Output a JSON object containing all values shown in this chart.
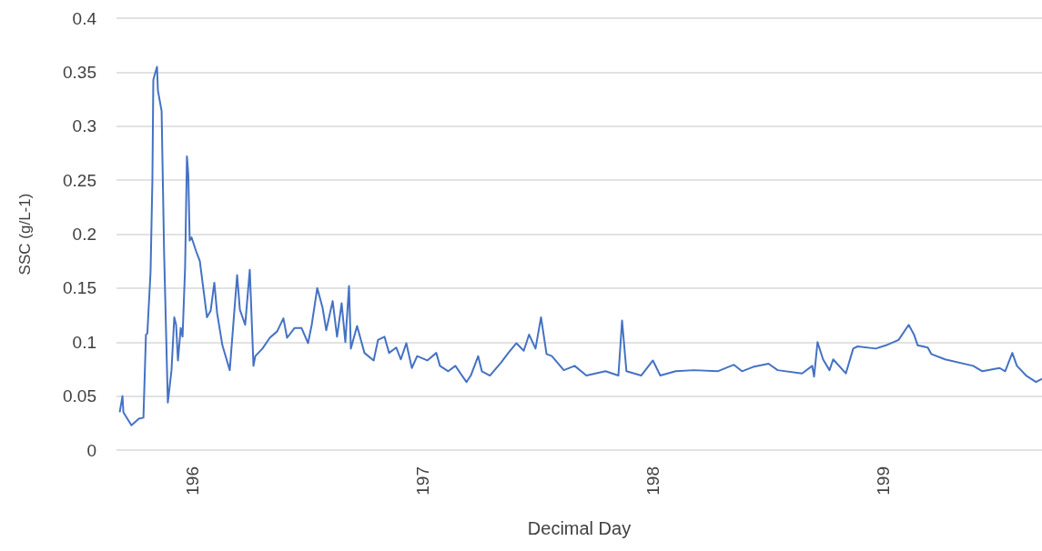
{
  "chart_data": {
    "type": "line",
    "xlabel": "Decimal Day",
    "ylabel": "SSC (g/L-1)",
    "xlim": [
      195.67,
      199.69
    ],
    "xticks": [
      196,
      197,
      198,
      199
    ],
    "ylim": [
      0,
      0.4
    ],
    "yticks": [
      0,
      0.05,
      0.1,
      0.15,
      0.2,
      0.25,
      0.3,
      0.35,
      0.4
    ],
    "grid": "y",
    "marker": "none",
    "line_style": "solid",
    "series": [
      {
        "color": "#4472c4",
        "x": [
          195.684,
          195.696,
          195.7,
          195.735,
          195.767,
          195.787,
          195.798,
          195.804,
          195.818,
          195.826,
          195.83,
          195.838,
          195.846,
          195.85,
          195.866,
          195.87,
          195.877,
          195.893,
          195.909,
          195.921,
          195.929,
          195.937,
          195.949,
          195.957,
          195.968,
          195.976,
          195.982,
          195.988,
          195.996,
          196.016,
          196.032,
          196.063,
          196.079,
          196.095,
          196.107,
          196.13,
          196.162,
          196.194,
          196.206,
          196.229,
          196.249,
          196.265,
          196.273,
          196.304,
          196.336,
          196.368,
          196.395,
          196.411,
          196.443,
          196.474,
          196.502,
          196.518,
          196.542,
          196.565,
          196.581,
          196.609,
          196.628,
          196.648,
          196.664,
          196.68,
          196.688,
          196.715,
          196.747,
          196.787,
          196.806,
          196.834,
          196.854,
          196.885,
          196.905,
          196.929,
          196.953,
          196.976,
          197.02,
          197.059,
          197.075,
          197.111,
          197.142,
          197.19,
          197.209,
          197.241,
          197.257,
          197.292,
          197.34,
          197.372,
          197.407,
          197.439,
          197.462,
          197.49,
          197.514,
          197.538,
          197.561,
          197.613,
          197.66,
          197.711,
          197.794,
          197.85,
          197.866,
          197.885,
          197.949,
          198,
          198.032,
          198.099,
          198.178,
          198.281,
          198.352,
          198.387,
          198.435,
          198.502,
          198.542,
          198.648,
          198.692,
          198.7,
          198.715,
          198.739,
          198.767,
          198.783,
          198.838,
          198.87,
          198.889,
          198.968,
          199.012,
          199.067,
          199.111,
          199.134,
          199.15,
          199.194,
          199.209,
          199.269,
          199.391,
          199.431,
          199.506,
          199.53,
          199.561,
          199.581,
          199.621,
          199.664,
          199.69
        ],
        "values": [
          0.035,
          0.05,
          0.035,
          0.023,
          0.029,
          0.03,
          0.107,
          0.108,
          0.165,
          0.25,
          0.343,
          0.349,
          0.355,
          0.333,
          0.314,
          0.265,
          0.181,
          0.044,
          0.074,
          0.123,
          0.116,
          0.083,
          0.113,
          0.105,
          0.169,
          0.272,
          0.255,
          0.194,
          0.197,
          0.184,
          0.175,
          0.123,
          0.129,
          0.155,
          0.127,
          0.097,
          0.074,
          0.162,
          0.13,
          0.116,
          0.167,
          0.078,
          0.087,
          0.094,
          0.104,
          0.11,
          0.122,
          0.104,
          0.113,
          0.113,
          0.099,
          0.116,
          0.15,
          0.132,
          0.111,
          0.138,
          0.105,
          0.136,
          0.1,
          0.152,
          0.094,
          0.115,
          0.09,
          0.083,
          0.102,
          0.105,
          0.09,
          0.095,
          0.084,
          0.099,
          0.076,
          0.087,
          0.083,
          0.09,
          0.078,
          0.073,
          0.078,
          0.063,
          0.069,
          0.087,
          0.073,
          0.069,
          0.081,
          0.09,
          0.099,
          0.092,
          0.107,
          0.094,
          0.123,
          0.089,
          0.087,
          0.074,
          0.078,
          0.069,
          0.073,
          0.069,
          0.12,
          0.073,
          0.069,
          0.083,
          0.069,
          0.073,
          0.074,
          0.073,
          0.079,
          0.073,
          0.077,
          0.08,
          0.074,
          0.071,
          0.078,
          0.068,
          0.1,
          0.084,
          0.074,
          0.084,
          0.071,
          0.094,
          0.096,
          0.094,
          0.097,
          0.102,
          0.116,
          0.107,
          0.097,
          0.095,
          0.089,
          0.084,
          0.078,
          0.073,
          0.076,
          0.073,
          0.09,
          0.078,
          0.069,
          0.063,
          0.066
        ]
      }
    ]
  }
}
